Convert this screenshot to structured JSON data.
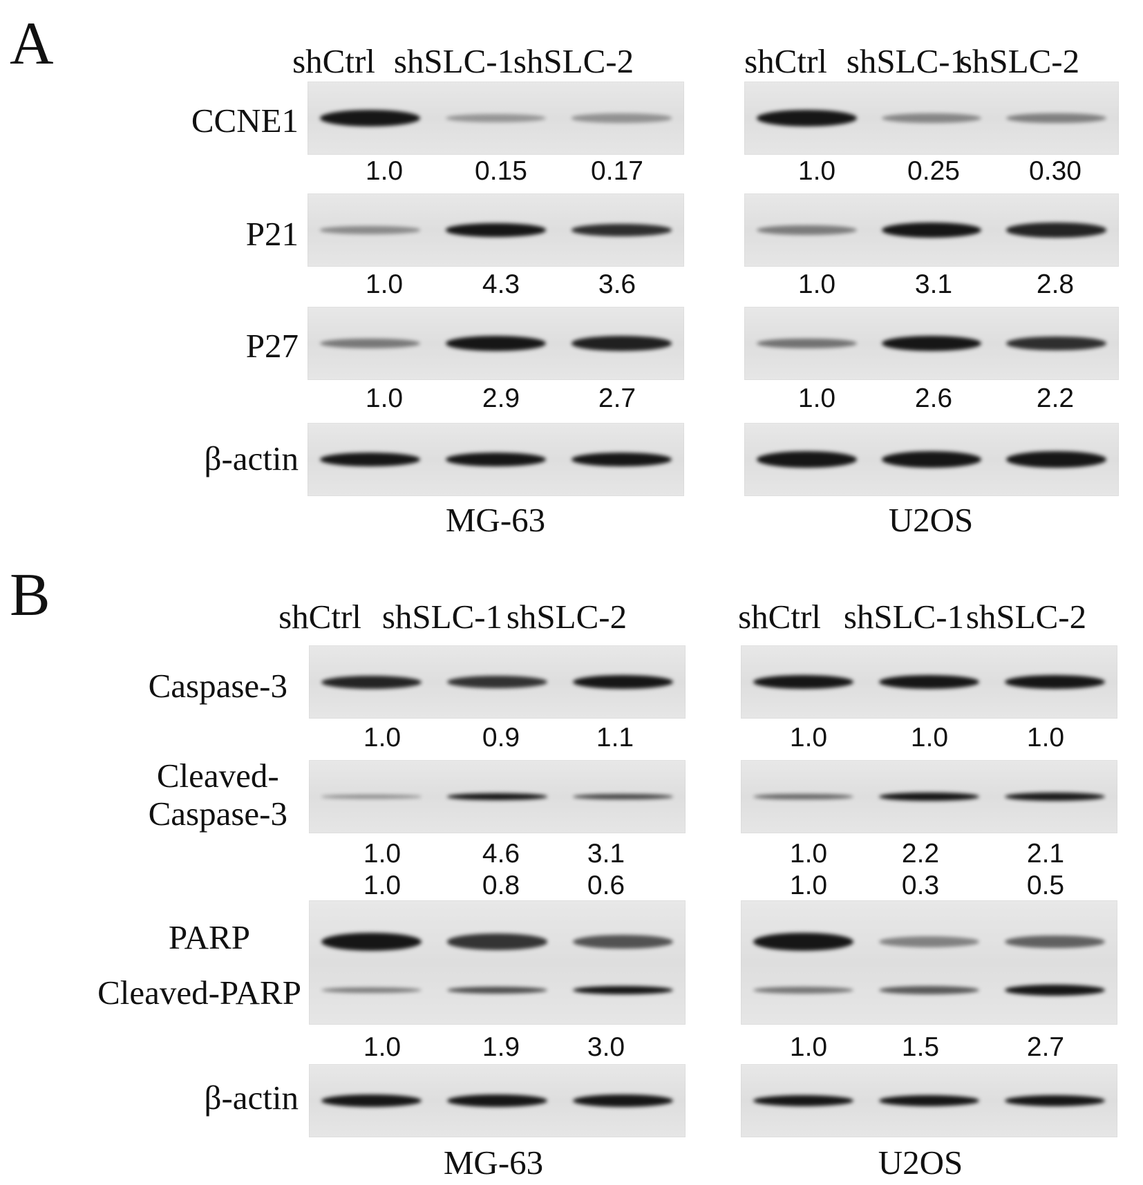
{
  "panelA": {
    "letter": "A",
    "lanes": [
      "shCtrl",
      "shSLC-1",
      "shSLC-2",
      "shCtrl",
      "shSLC-1",
      "shSLC-2"
    ],
    "blots": [
      {
        "protein": "CCNE1",
        "mg63": [
          "1.0",
          "0.15",
          "0.17"
        ],
        "u2os": [
          "1.0",
          "0.25",
          "0.30"
        ]
      },
      {
        "protein": "P21",
        "mg63": [
          "1.0",
          "4.3",
          "3.6"
        ],
        "u2os": [
          "1.0",
          "3.1",
          "2.8"
        ]
      },
      {
        "protein": "P27",
        "mg63": [
          "1.0",
          "2.9",
          "2.7"
        ],
        "u2os": [
          "1.0",
          "2.6",
          "2.2"
        ]
      },
      {
        "protein": "β-actin"
      }
    ],
    "cells": [
      "MG-63",
      "U2OS"
    ]
  },
  "panelB": {
    "letter": "B",
    "lanes": [
      "shCtrl",
      "shSLC-1",
      "shSLC-2",
      "shCtrl",
      "shSLC-1",
      "shSLC-2"
    ],
    "blots": [
      {
        "protein": "Caspase-3",
        "mg63": [
          "1.0",
          "0.9",
          "1.1"
        ],
        "u2os": [
          "1.0",
          "1.0",
          "1.0"
        ]
      },
      {
        "protein_line1": "Cleaved-",
        "protein_line2": "Caspase-3",
        "mg63": [
          "1.0",
          "4.6",
          "3.1"
        ],
        "u2os": [
          "1.0",
          "2.2",
          "2.1"
        ]
      },
      {
        "protein": "PARP",
        "mg63": [
          "1.0",
          "0.8",
          "0.6"
        ],
        "u2os": [
          "1.0",
          "0.3",
          "0.5"
        ]
      },
      {
        "protein": "Cleaved-PARP",
        "mg63": [
          "1.0",
          "1.9",
          "3.0"
        ],
        "u2os": [
          "1.0",
          "1.5",
          "2.7"
        ]
      },
      {
        "protein": "β-actin"
      }
    ],
    "cells": [
      "MG-63",
      "U2OS"
    ]
  },
  "band_intensity": {
    "A_ccne1_mg63": [
      1.0,
      0.15,
      0.17
    ],
    "A_ccne1_u2os": [
      1.0,
      0.25,
      0.3
    ],
    "A_p21_mg63": [
      1.0,
      4.3,
      3.6
    ],
    "A_p21_u2os": [
      1.0,
      3.1,
      2.8
    ],
    "A_p27_mg63": [
      1.0,
      2.9,
      2.7
    ],
    "A_p27_u2os": [
      1.0,
      2.6,
      2.2
    ],
    "A_actin_mg63": [
      1.0,
      1.0,
      1.0
    ],
    "A_actin_u2os": [
      1.0,
      1.0,
      1.0
    ],
    "B_casp3_mg63": [
      1.0,
      0.9,
      1.1
    ],
    "B_casp3_u2os": [
      1.0,
      1.0,
      1.0
    ],
    "B_ccasp3_mg63": [
      1.0,
      4.6,
      3.1
    ],
    "B_ccasp3_u2os": [
      1.0,
      2.2,
      2.1
    ],
    "B_parp_mg63": [
      1.0,
      0.8,
      0.6
    ],
    "B_parp_u2os": [
      1.0,
      0.3,
      0.5
    ],
    "B_cparp_mg63": [
      1.0,
      1.9,
      3.0
    ],
    "B_cparp_u2os": [
      1.0,
      1.5,
      2.7
    ],
    "B_actin_mg63": [
      1.0,
      1.0,
      1.0
    ],
    "B_actin_u2os": [
      1.0,
      1.0,
      1.0
    ]
  }
}
